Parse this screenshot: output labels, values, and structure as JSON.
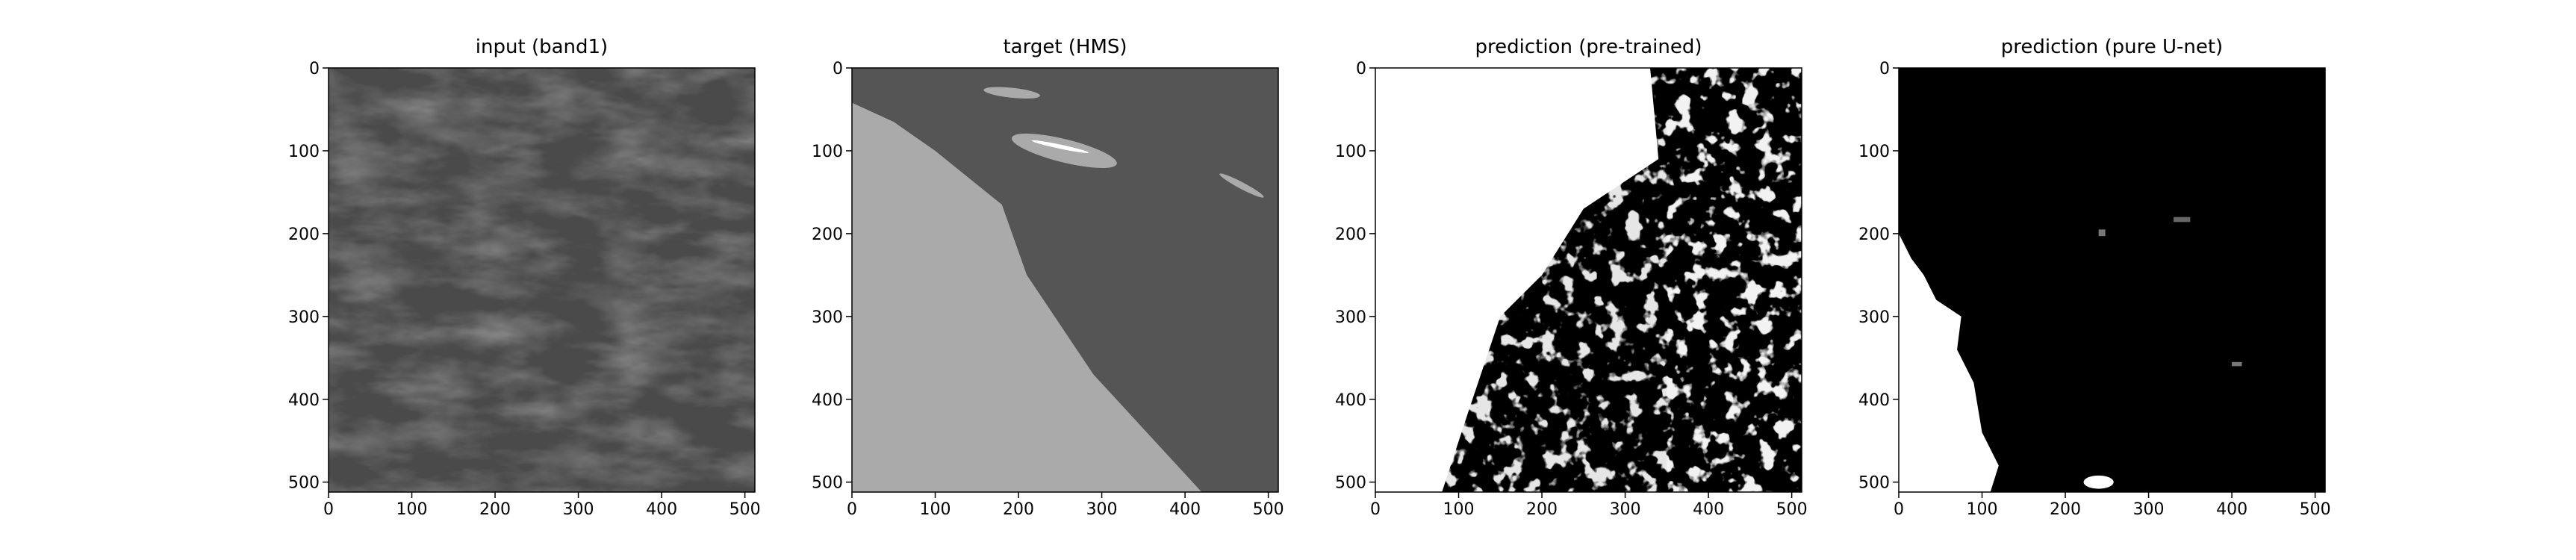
{
  "chart_data": [
    {
      "type": "image",
      "title": "input (band1)",
      "xlim": [
        0,
        512
      ],
      "ylim": [
        512,
        0
      ],
      "xticks": [
        0,
        100,
        200,
        300,
        400,
        500
      ],
      "yticks": [
        0,
        100,
        200,
        300,
        400,
        500
      ]
    },
    {
      "type": "image",
      "title": "target (HMS)",
      "xlim": [
        0,
        512
      ],
      "ylim": [
        512,
        0
      ],
      "xticks": [
        0,
        100,
        200,
        300,
        400,
        500
      ],
      "yticks": [
        0,
        100,
        200,
        300,
        400,
        500
      ]
    },
    {
      "type": "image",
      "title": "prediction (pre-trained)",
      "xlim": [
        0,
        512
      ],
      "ylim": [
        512,
        0
      ],
      "xticks": [
        0,
        100,
        200,
        300,
        400,
        500
      ],
      "yticks": [
        0,
        100,
        200,
        300,
        400,
        500
      ]
    },
    {
      "type": "image",
      "title": "prediction (pure U-net)",
      "xlim": [
        0,
        512
      ],
      "ylim": [
        512,
        0
      ],
      "xticks": [
        0,
        100,
        200,
        300,
        400,
        500
      ],
      "yticks": [
        0,
        100,
        200,
        300,
        400,
        500
      ]
    }
  ]
}
